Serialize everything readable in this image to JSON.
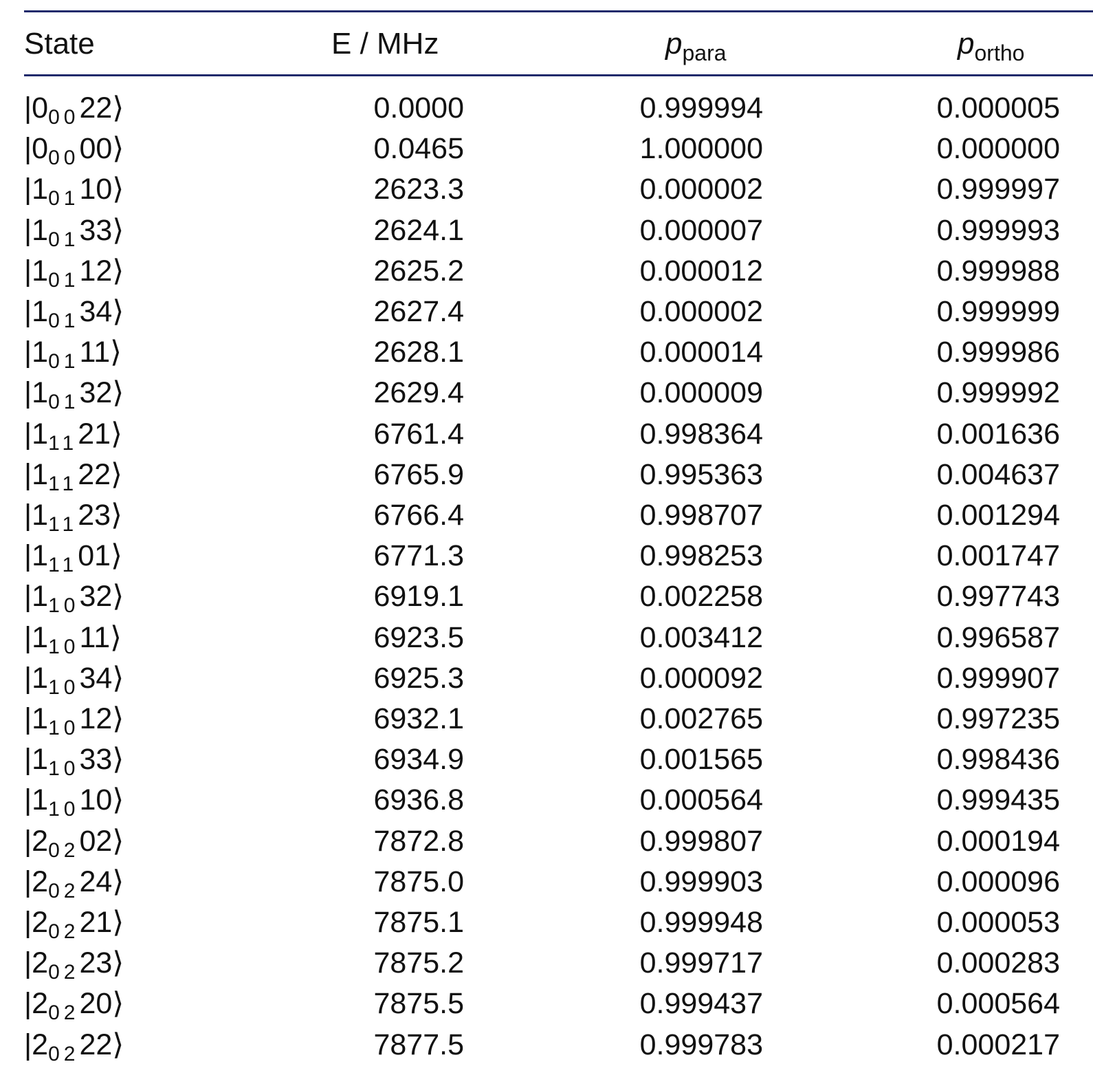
{
  "table": {
    "headers": {
      "state": "State",
      "energy": "E / MHz",
      "p_para_symbol": "p",
      "p_para_sub": "para",
      "p_ortho_symbol": "p",
      "p_ortho_sub": "ortho"
    },
    "rule_color": "#1f2a6b",
    "rows": [
      {
        "j": "0",
        "ka": "0",
        "kc": "0",
        "q": "22",
        "energy": "0.0000",
        "p_para": "0.999994",
        "p_ortho": "0.000005"
      },
      {
        "j": "0",
        "ka": "0",
        "kc": "0",
        "q": "00",
        "energy": "0.0465",
        "p_para": "1.000000",
        "p_ortho": "0.000000"
      },
      {
        "j": "1",
        "ka": "0",
        "kc": "1",
        "q": "10",
        "energy": "2623.3",
        "p_para": "0.000002",
        "p_ortho": "0.999997"
      },
      {
        "j": "1",
        "ka": "0",
        "kc": "1",
        "q": "33",
        "energy": "2624.1",
        "p_para": "0.000007",
        "p_ortho": "0.999993"
      },
      {
        "j": "1",
        "ka": "0",
        "kc": "1",
        "q": "12",
        "energy": "2625.2",
        "p_para": "0.000012",
        "p_ortho": "0.999988"
      },
      {
        "j": "1",
        "ka": "0",
        "kc": "1",
        "q": "34",
        "energy": "2627.4",
        "p_para": "0.000002",
        "p_ortho": "0.999999"
      },
      {
        "j": "1",
        "ka": "0",
        "kc": "1",
        "q": "11",
        "energy": "2628.1",
        "p_para": "0.000014",
        "p_ortho": "0.999986"
      },
      {
        "j": "1",
        "ka": "0",
        "kc": "1",
        "q": "32",
        "energy": "2629.4",
        "p_para": "0.000009",
        "p_ortho": "0.999992"
      },
      {
        "j": "1",
        "ka": "1",
        "kc": "1",
        "q": "21",
        "energy": "6761.4",
        "p_para": "0.998364",
        "p_ortho": "0.001636"
      },
      {
        "j": "1",
        "ka": "1",
        "kc": "1",
        "q": "22",
        "energy": "6765.9",
        "p_para": "0.995363",
        "p_ortho": "0.004637"
      },
      {
        "j": "1",
        "ka": "1",
        "kc": "1",
        "q": "23",
        "energy": "6766.4",
        "p_para": "0.998707",
        "p_ortho": "0.001294"
      },
      {
        "j": "1",
        "ka": "1",
        "kc": "1",
        "q": "01",
        "energy": "6771.3",
        "p_para": "0.998253",
        "p_ortho": "0.001747"
      },
      {
        "j": "1",
        "ka": "1",
        "kc": "0",
        "q": "32",
        "energy": "6919.1",
        "p_para": "0.002258",
        "p_ortho": "0.997743"
      },
      {
        "j": "1",
        "ka": "1",
        "kc": "0",
        "q": "11",
        "energy": "6923.5",
        "p_para": "0.003412",
        "p_ortho": "0.996587"
      },
      {
        "j": "1",
        "ka": "1",
        "kc": "0",
        "q": "34",
        "energy": "6925.3",
        "p_para": "0.000092",
        "p_ortho": "0.999907"
      },
      {
        "j": "1",
        "ka": "1",
        "kc": "0",
        "q": "12",
        "energy": "6932.1",
        "p_para": "0.002765",
        "p_ortho": "0.997235"
      },
      {
        "j": "1",
        "ka": "1",
        "kc": "0",
        "q": "33",
        "energy": "6934.9",
        "p_para": "0.001565",
        "p_ortho": "0.998436"
      },
      {
        "j": "1",
        "ka": "1",
        "kc": "0",
        "q": "10",
        "energy": "6936.8",
        "p_para": "0.000564",
        "p_ortho": "0.999435"
      },
      {
        "j": "2",
        "ka": "0",
        "kc": "2",
        "q": "02",
        "energy": "7872.8",
        "p_para": "0.999807",
        "p_ortho": "0.000194"
      },
      {
        "j": "2",
        "ka": "0",
        "kc": "2",
        "q": "24",
        "energy": "7875.0",
        "p_para": "0.999903",
        "p_ortho": "0.000096"
      },
      {
        "j": "2",
        "ka": "0",
        "kc": "2",
        "q": "21",
        "energy": "7875.1",
        "p_para": "0.999948",
        "p_ortho": "0.000053"
      },
      {
        "j": "2",
        "ka": "0",
        "kc": "2",
        "q": "23",
        "energy": "7875.2",
        "p_para": "0.999717",
        "p_ortho": "0.000283"
      },
      {
        "j": "2",
        "ka": "0",
        "kc": "2",
        "q": "20",
        "energy": "7875.5",
        "p_para": "0.999437",
        "p_ortho": "0.000564"
      },
      {
        "j": "2",
        "ka": "0",
        "kc": "2",
        "q": "22",
        "energy": "7877.5",
        "p_para": "0.999783",
        "p_ortho": "0.000217"
      }
    ]
  }
}
